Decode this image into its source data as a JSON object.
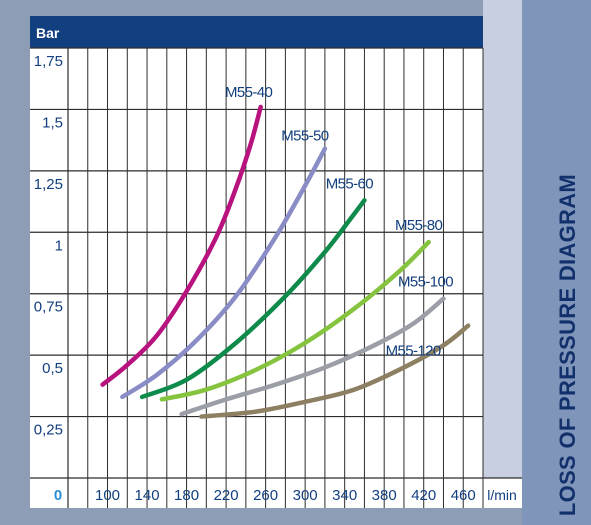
{
  "side_title": "LOSS OF PRESSURE DIAGRAM",
  "colors": {
    "header": "#123f7f",
    "plot_bg": "#ffffff",
    "grid": "#2c2c2c",
    "axis_text": "#123f7f",
    "origin_text": "#2a8fd2",
    "label_text": "#123f7f",
    "gray_strip": "#c8cfe0",
    "side_panel": "#7f95b9",
    "left_bg": "#8e9db6"
  },
  "chart_data": {
    "type": "line",
    "ylabel": "Bar",
    "xlabel": "l/min",
    "xlim": [
      60,
      480
    ],
    "ylim": [
      0,
      1.75
    ],
    "origin_label": "0",
    "x_ticks": [
      "100",
      "140",
      "180",
      "220",
      "260",
      "300",
      "340",
      "380",
      "420",
      "460"
    ],
    "y_ticks": [
      "0,25",
      "0,5",
      "0,75",
      "1",
      "1,25",
      "1,5",
      "1,75"
    ],
    "grid": true,
    "series": [
      {
        "name": "M55-40",
        "color": "#b8127e",
        "x": [
          95,
          120,
          150,
          180,
          210,
          230,
          245,
          255
        ],
        "y": [
          0.38,
          0.46,
          0.58,
          0.76,
          0.98,
          1.18,
          1.36,
          1.51
        ]
      },
      {
        "name": "M55-50",
        "color": "#8a8cc6",
        "x": [
          115,
          150,
          190,
          230,
          270,
          300,
          320
        ],
        "y": [
          0.33,
          0.42,
          0.56,
          0.74,
          0.98,
          1.19,
          1.34
        ]
      },
      {
        "name": "M55-60",
        "color": "#0e8a4a",
        "x": [
          135,
          180,
          230,
          280,
          320,
          345,
          360
        ],
        "y": [
          0.33,
          0.4,
          0.55,
          0.74,
          0.92,
          1.05,
          1.13
        ]
      },
      {
        "name": "M55-80",
        "color": "#86c440",
        "x": [
          155,
          200,
          250,
          300,
          350,
          395,
          425
        ],
        "y": [
          0.32,
          0.36,
          0.44,
          0.55,
          0.69,
          0.84,
          0.96
        ]
      },
      {
        "name": "M55-100",
        "color": "#9b9ea6",
        "x": [
          175,
          220,
          270,
          320,
          370,
          410,
          440
        ],
        "y": [
          0.26,
          0.32,
          0.38,
          0.45,
          0.54,
          0.63,
          0.73
        ]
      },
      {
        "name": "M55-120",
        "color": "#8d8062",
        "x": [
          195,
          250,
          300,
          350,
          400,
          440,
          465
        ],
        "y": [
          0.25,
          0.27,
          0.31,
          0.36,
          0.45,
          0.54,
          0.62
        ]
      }
    ],
    "annotations": [
      "M55-40",
      "M55-50",
      "M55-60",
      "M55-80",
      "M55-100",
      "M55-120"
    ]
  }
}
